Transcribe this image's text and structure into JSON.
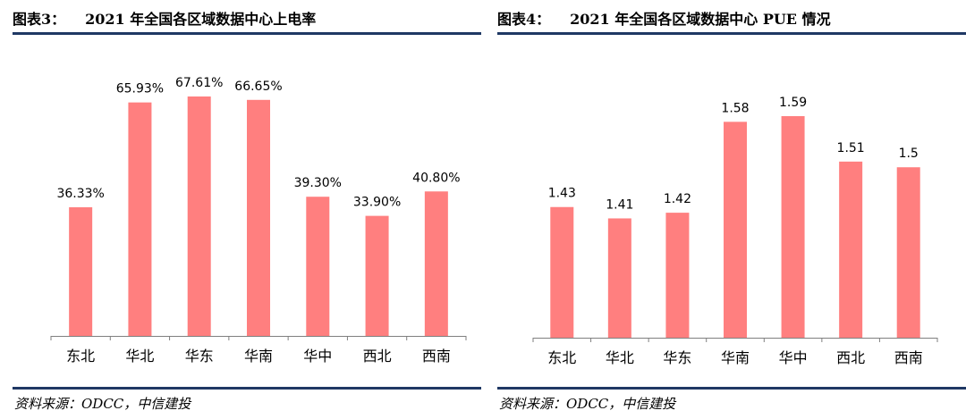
{
  "colors": {
    "bar": "#ff7f7f",
    "rule": "#1f3864",
    "axis": "#7f7f7f"
  },
  "left": {
    "fig_label": "图表3：",
    "title": "2021 年全国各区域数据中心上电率",
    "source": "资料来源：ODCC，中信建投"
  },
  "right": {
    "fig_label": "图表4：",
    "title": "2021 年全国各区域数据中心 PUE 情况",
    "source": "资料来源：ODCC，中信建投"
  },
  "chart_data": [
    {
      "type": "bar",
      "title": "2021 年全国各区域数据中心上电率",
      "categories": [
        "东北",
        "华北",
        "华东",
        "华南",
        "华中",
        "西北",
        "西南"
      ],
      "values": [
        36.33,
        65.93,
        67.61,
        66.65,
        39.3,
        33.9,
        40.8
      ],
      "labels": [
        "36.33%",
        "65.93%",
        "67.61%",
        "66.65%",
        "39.30%",
        "33.90%",
        "40.80%"
      ],
      "unit": "%",
      "ylim": [
        0,
        100
      ],
      "grid": false,
      "legend": "none"
    },
    {
      "type": "bar",
      "title": "2021 年全国各区域数据中心 PUE 情况",
      "categories": [
        "东北",
        "华北",
        "华东",
        "华南",
        "华中",
        "西北",
        "西南"
      ],
      "values": [
        1.43,
        1.41,
        1.42,
        1.58,
        1.59,
        1.51,
        1.5
      ],
      "labels": [
        "1.43",
        "1.41",
        "1.42",
        "1.58",
        "1.59",
        "1.51",
        "1.5"
      ],
      "ylim": [
        1.2,
        1.65
      ],
      "grid": false,
      "legend": "none"
    }
  ]
}
